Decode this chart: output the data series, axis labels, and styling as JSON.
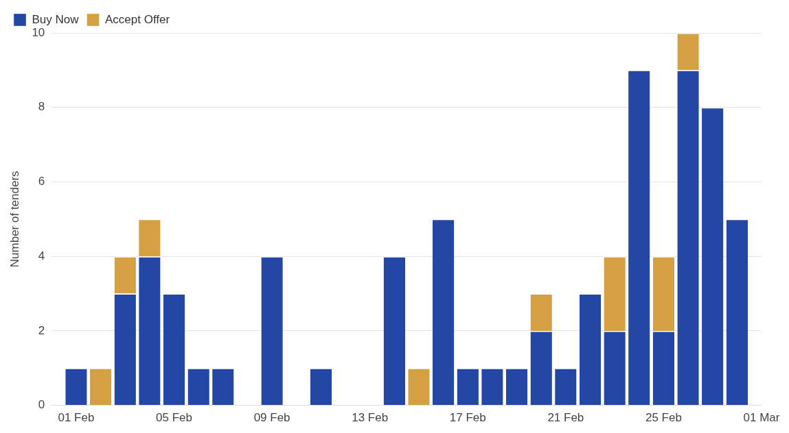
{
  "chart_data": {
    "type": "bar",
    "stacked": true,
    "ylabel": "Number of tenders",
    "x": [
      "--02-01",
      "--02-02",
      "--02-03",
      "--02-04",
      "--02-05",
      "--02-06",
      "--02-07",
      "--02-08",
      "--02-09",
      "--02-10",
      "--02-11",
      "--02-12",
      "--02-13",
      "--02-14",
      "--02-15",
      "--02-16",
      "--02-17",
      "--02-18",
      "--02-19",
      "--02-20",
      "--02-21",
      "--02-22",
      "--02-23",
      "--02-24",
      "--02-25",
      "--02-26",
      "--02-27",
      "--02-28"
    ],
    "series": [
      {
        "name": "Buy Now",
        "color": "#2447a6",
        "values": [
          1,
          0,
          3,
          4,
          3,
          1,
          1,
          0,
          4,
          0,
          1,
          0,
          0,
          4,
          0,
          5,
          1,
          1,
          1,
          2,
          1,
          3,
          2,
          9,
          2,
          9,
          8,
          5
        ]
      },
      {
        "name": "Accept Offer",
        "color": "#d4a041",
        "values": [
          0,
          1,
          1,
          1,
          0,
          0,
          0,
          0,
          0,
          0,
          0,
          0,
          0,
          0,
          1,
          0,
          0,
          0,
          0,
          1,
          0,
          0,
          2,
          0,
          2,
          1,
          0,
          0
        ]
      }
    ],
    "xlim": [
      "--01-31",
      "--03-01"
    ],
    "xticks": [
      {
        "value": "--02-01",
        "label": "01 Feb"
      },
      {
        "value": "--02-05",
        "label": "05 Feb"
      },
      {
        "value": "--02-09",
        "label": "09 Feb"
      },
      {
        "value": "--02-13",
        "label": "13 Feb"
      },
      {
        "value": "--02-17",
        "label": "17 Feb"
      },
      {
        "value": "--02-21",
        "label": "21 Feb"
      },
      {
        "value": "--02-25",
        "label": "25 Feb"
      },
      {
        "value": "--03-01",
        "label": "01 Mar"
      }
    ],
    "ylim": [
      0,
      10
    ],
    "yticks": [
      0,
      2,
      4,
      6,
      8,
      10
    ],
    "grid": "y",
    "legend": "top left"
  }
}
